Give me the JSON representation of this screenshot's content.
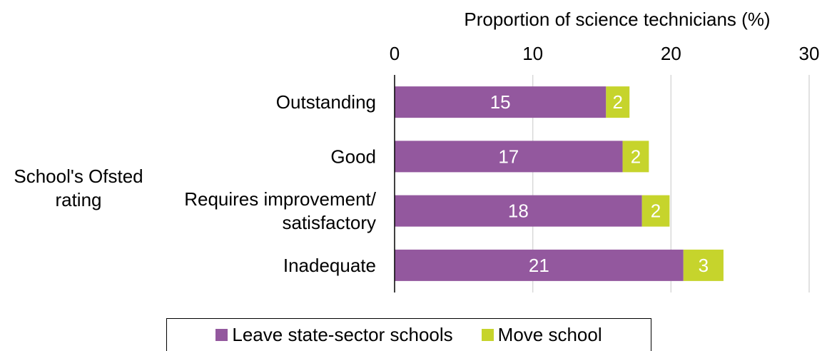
{
  "chart_data": {
    "type": "bar",
    "orientation": "horizontal",
    "stacked": true,
    "xlabel": "Proportion of science technicians (%)",
    "ylabel": "School's Ofsted rating",
    "xlim": [
      0,
      30
    ],
    "xticks": [
      "0",
      "10",
      "20",
      "30"
    ],
    "grid": true,
    "legend_position": "bottom",
    "categories": [
      {
        "lines": [
          "Outstanding"
        ]
      },
      {
        "lines": [
          "Good"
        ]
      },
      {
        "lines": [
          "Requires improvement/",
          "satisfactory"
        ]
      },
      {
        "lines": [
          "Inadequate"
        ]
      }
    ],
    "series": [
      {
        "name": "Leave state-sector schools",
        "color": "#93589e",
        "values": [
          15.3,
          16.5,
          17.9,
          20.9
        ],
        "labels": [
          "15",
          "17",
          "18",
          "21"
        ]
      },
      {
        "name": "Move school",
        "color": "#c6d42c",
        "values": [
          1.7,
          1.9,
          2.0,
          2.9
        ],
        "labels": [
          "2",
          "2",
          "2",
          "3"
        ]
      }
    ]
  }
}
